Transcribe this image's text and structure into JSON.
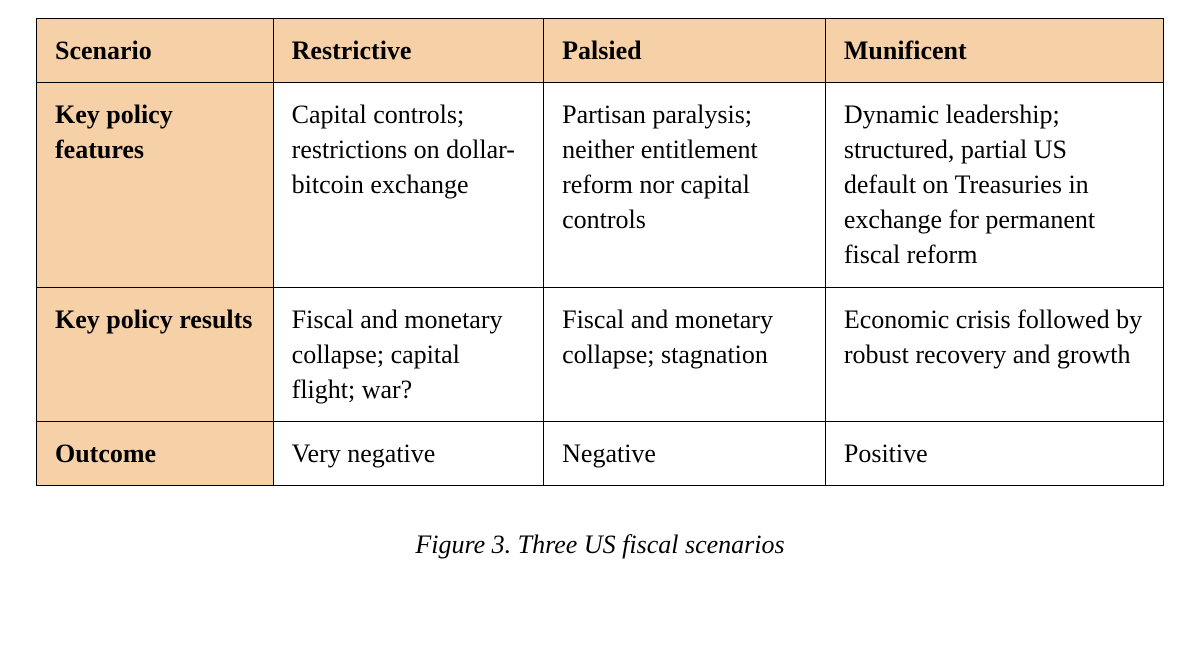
{
  "table": {
    "header_bg": "#f6d0a6",
    "rowheader_bg": "#f6d0a6",
    "cell_bg": "#ffffff",
    "border_color": "#000000",
    "text_color": "#000000",
    "font_family": "Times New Roman",
    "header_fontsize": 26,
    "cell_fontsize": 26,
    "columns": [
      "Scenario",
      "Restrictive",
      "Palsied",
      "Munificent"
    ],
    "column_widths_pct": [
      21,
      24,
      25,
      30
    ],
    "rows": [
      {
        "label": "Key policy features",
        "cells": [
          "Capital controls; restrictions on dollar-bitcoin exchange",
          "Partisan paralysis; neither entitlement reform nor capital controls",
          "Dynamic leadership; structured, partial US default on Treasuries in exchange for permanent fiscal reform"
        ]
      },
      {
        "label": "Key policy results",
        "cells": [
          "Fiscal and monetary collapse; capital flight; war?",
          "Fiscal and monetary collapse; stagnation",
          "Economic crisis followed by robust recovery and growth"
        ]
      },
      {
        "label": "Outcome",
        "cells": [
          "Very negative",
          "Negative",
          "Positive"
        ]
      }
    ]
  },
  "caption": "Figure 3. Three US fiscal scenarios"
}
